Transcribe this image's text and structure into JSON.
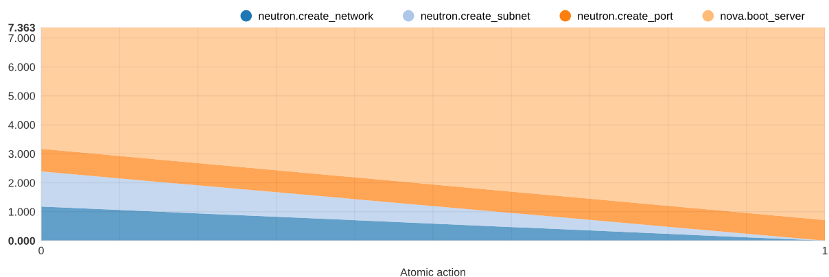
{
  "chart_data": {
    "type": "area",
    "stacked": true,
    "xlabel": "Atomic action",
    "x": [
      0,
      1
    ],
    "series": [
      {
        "name": "neutron.create_network",
        "color": "#1f77b4",
        "values": [
          1.18,
          0
        ]
      },
      {
        "name": "neutron.create_subnet",
        "color": "#aec7e8",
        "values": [
          1.21,
          0
        ]
      },
      {
        "name": "neutron.create_port",
        "color": "#ff7f0e",
        "values": [
          0.78,
          0.71
        ]
      },
      {
        "name": "nova.boot_server",
        "color": "#ffbb78",
        "values": [
          4.19,
          6.65
        ]
      }
    ],
    "xlim": [
      0,
      1
    ],
    "xticks": [
      0,
      {
        "value": 0.1,
        "label": null
      },
      {
        "value": 0.2,
        "label": null
      },
      {
        "value": 0.3,
        "label": null
      },
      {
        "value": 0.4,
        "label": null
      },
      {
        "value": 0.5,
        "label": null
      },
      {
        "value": 0.6,
        "label": null
      },
      {
        "value": 0.7,
        "label": null
      },
      {
        "value": 0.8,
        "label": null
      },
      {
        "value": 0.9,
        "label": null
      },
      1
    ],
    "ylim": [
      0,
      7.363
    ],
    "yticks": [
      {
        "value": 0,
        "label": "0.000"
      },
      {
        "value": 1,
        "label": "1.000"
      },
      {
        "value": 2,
        "label": "2.000"
      },
      {
        "value": 3,
        "label": "3.000"
      },
      {
        "value": 4,
        "label": "4.000"
      },
      {
        "value": 5,
        "label": "5.000"
      },
      {
        "value": 6,
        "label": "6.000"
      },
      {
        "value": 7,
        "label": "7.000"
      },
      {
        "value": 7.363,
        "label": "7.363"
      }
    ],
    "grid": true,
    "legend": "top right"
  }
}
